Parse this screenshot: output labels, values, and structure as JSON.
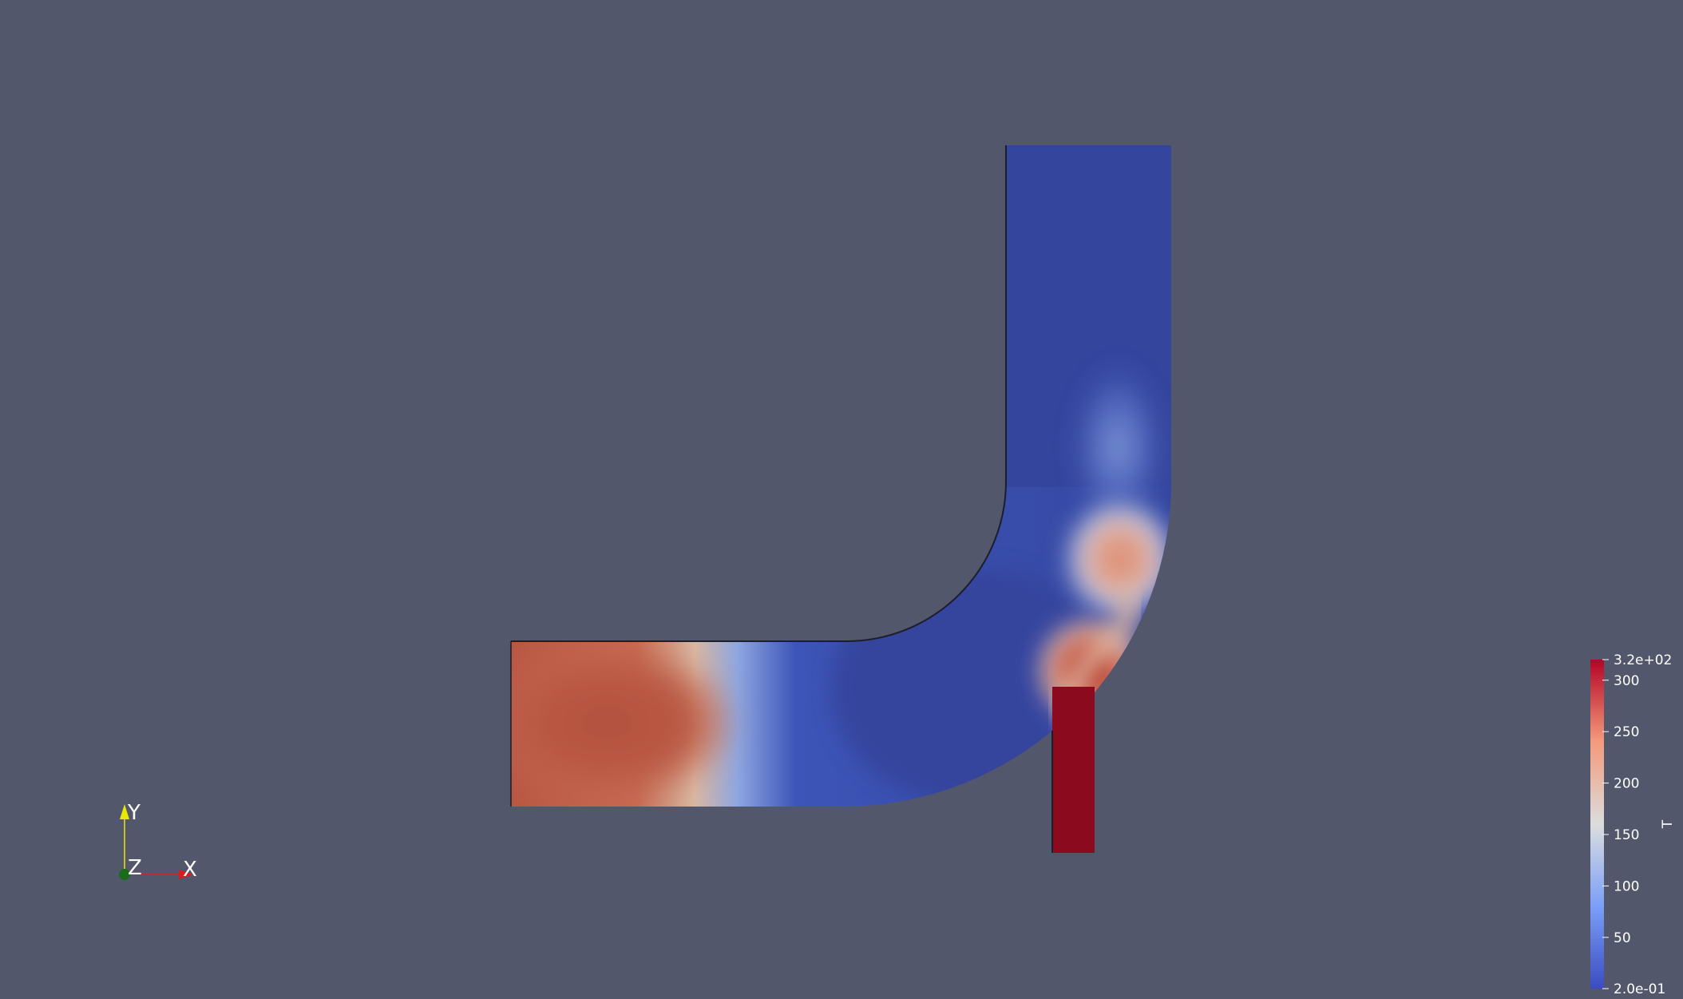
{
  "view": {
    "background_color": "#52576b"
  },
  "field": {
    "variable": "T",
    "colormap": "Cool to Warm",
    "range": [
      0.2,
      320
    ],
    "description_colors": {
      "low": "#3b4cc0",
      "mid": "#dddddd",
      "high": "#b40426",
      "inlet_hot": "#8b0a1e"
    }
  },
  "scalar_bar": {
    "title": "T",
    "max_label": "3.2e+02",
    "min_label": "2.0e-01",
    "ticks": [
      {
        "value": 300,
        "label": "300"
      },
      {
        "value": 250,
        "label": "250"
      },
      {
        "value": 200,
        "label": "200"
      },
      {
        "value": 150,
        "label": "150"
      },
      {
        "value": 100,
        "label": "100"
      },
      {
        "value": 50,
        "label": "50"
      }
    ]
  },
  "orientation_axes": {
    "x_label": "X",
    "y_label": "Y",
    "z_label": "Z",
    "x_color": "#d62020",
    "y_color": "#e8e800",
    "z_color": "#1a6b1a"
  }
}
